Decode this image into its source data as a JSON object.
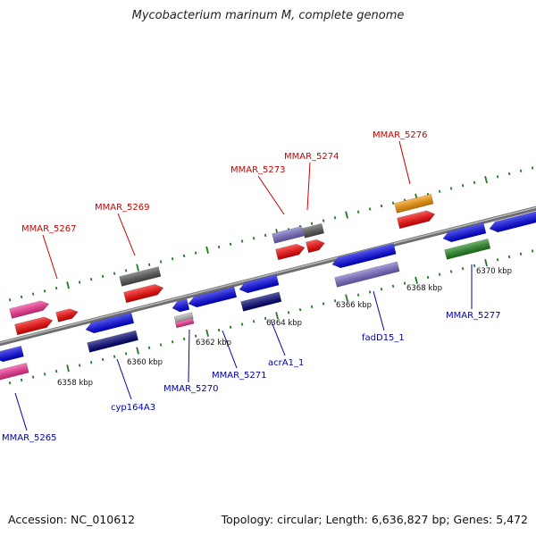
{
  "title": "Mycobacterium marinum M, complete genome",
  "footer": {
    "accession": "Accession: NC_010612",
    "summary": "Topology: circular; Length: 6,636,827 bp; Genes: 5,472"
  },
  "colors": {
    "backbone": "#8a8a8a",
    "forward_label": "#cc0000",
    "reverse_label": "#0000aa",
    "tick_dot": "#1f7a1f"
  },
  "scale_ticks": [
    "6358 kbp",
    "6360 kbp",
    "6362 kbp",
    "6364 kbp",
    "6366 kbp",
    "6368 kbp",
    "6370 kbp"
  ],
  "gene_labels": [
    {
      "id": "mmar5267",
      "text": "MMAR_5267",
      "strand": "forward"
    },
    {
      "id": "mmar5269",
      "text": "MMAR_5269",
      "strand": "forward"
    },
    {
      "id": "mmar5273",
      "text": "MMAR_5273",
      "strand": "forward"
    },
    {
      "id": "mmar5274",
      "text": "MMAR_5274",
      "strand": "forward"
    },
    {
      "id": "mmar5276",
      "text": "MMAR_5276",
      "strand": "forward"
    },
    {
      "id": "mmar5265",
      "text": "MMAR_5265",
      "strand": "reverse"
    },
    {
      "id": "cyp164a3",
      "text": "cyp164A3",
      "strand": "reverse"
    },
    {
      "id": "mmar5270",
      "text": "MMAR_5270",
      "strand": "reverse"
    },
    {
      "id": "mmar5271",
      "text": "MMAR_5271",
      "strand": "reverse"
    },
    {
      "id": "acra1",
      "text": "acrA1_1",
      "strand": "reverse"
    },
    {
      "id": "fadd15",
      "text": "fadD15_1",
      "strand": "reverse"
    },
    {
      "id": "mmar5277",
      "text": "MMAR_5277",
      "strand": "reverse"
    }
  ]
}
